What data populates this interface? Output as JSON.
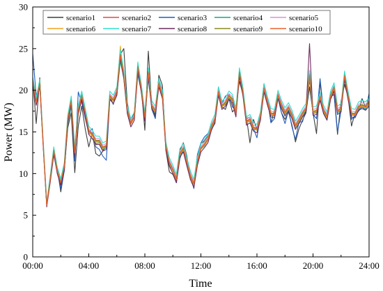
{
  "chart_data": {
    "type": "line",
    "xlabel": "Time",
    "ylabel": "Power (MW)",
    "xticks": [
      "00:00",
      "04:00",
      "08:00",
      "12:00",
      "16:00",
      "20:00",
      "24:00"
    ],
    "xlim": [
      0,
      24
    ],
    "ylim": [
      0,
      30
    ],
    "yticks": [
      0,
      5,
      10,
      15,
      20,
      25,
      30
    ],
    "legend_position": "top",
    "x": [
      0.0,
      0.25,
      0.5,
      0.75,
      1.0,
      1.25,
      1.5,
      1.75,
      2.0,
      2.25,
      2.5,
      2.75,
      3.0,
      3.25,
      3.5,
      3.75,
      4.0,
      4.25,
      4.5,
      4.75,
      5.0,
      5.25,
      5.5,
      5.75,
      6.0,
      6.25,
      6.5,
      6.75,
      7.0,
      7.25,
      7.5,
      7.75,
      8.0,
      8.25,
      8.5,
      8.75,
      9.0,
      9.25,
      9.5,
      9.75,
      10.0,
      10.25,
      10.5,
      10.75,
      11.0,
      11.25,
      11.5,
      11.75,
      12.0,
      12.25,
      12.5,
      12.75,
      13.0,
      13.25,
      13.5,
      13.75,
      14.0,
      14.25,
      14.5,
      14.75,
      15.0,
      15.25,
      15.5,
      15.75,
      16.0,
      16.25,
      16.5,
      16.75,
      17.0,
      17.25,
      17.5,
      17.75,
      18.0,
      18.25,
      18.5,
      18.75,
      19.0,
      19.25,
      19.5,
      19.75,
      20.0,
      20.25,
      20.5,
      20.75,
      21.0,
      21.25,
      21.5,
      21.75,
      22.0,
      22.25,
      22.5,
      22.75,
      23.0,
      23.25,
      23.5,
      23.75,
      24.0
    ],
    "series": [
      {
        "name": "scenario1",
        "color": "#3d3d3d",
        "values": [
          21.4,
          16.0,
          21.5,
          13.4,
          6.3,
          9.3,
          12.8,
          10.6,
          7.8,
          10.4,
          15.5,
          17.3,
          10.1,
          15.7,
          18.1,
          15.3,
          13.2,
          14.9,
          12.4,
          12.1,
          12.7,
          13.3,
          19.3,
          18.3,
          20.2,
          24.3,
          25.0,
          18.5,
          16.2,
          17.4,
          22.5,
          20.2,
          15.2,
          24.7,
          18.0,
          16.8,
          21.8,
          20.6,
          12.8,
          10.2,
          9.9,
          8.9,
          12.8,
          13.7,
          12.1,
          9.3,
          9.0,
          12.1,
          13.6,
          13.9,
          14.5,
          15.4,
          16.0,
          20.2,
          18.0,
          17.7,
          19.0,
          17.4,
          17.9,
          21.1,
          19.5,
          16.8,
          13.7,
          16.5,
          15.3,
          17.2,
          20.7,
          18.9,
          16.1,
          17.6,
          19.2,
          17.3,
          16.5,
          17.4,
          15.8,
          13.8,
          15.4,
          16.4,
          17.3,
          20.4,
          17.3,
          14.8,
          21.0,
          17.4,
          16.6,
          19.2,
          19.5,
          14.7,
          18.7,
          20.7,
          19.2,
          15.7,
          17.3,
          17.5,
          19.0,
          18.0,
          18.8
        ]
      },
      {
        "name": "scenario2",
        "color": "#e8453c",
        "values": [
          21.0,
          18.5,
          20.8,
          13.5,
          6.2,
          9.3,
          12.7,
          10.3,
          9.0,
          10.8,
          16.5,
          18.7,
          12.5,
          17.6,
          19.3,
          17.2,
          15.1,
          14.6,
          13.9,
          13.9,
          13.1,
          13.3,
          19.3,
          18.8,
          19.8,
          24.2,
          21.8,
          17.6,
          16.0,
          16.8,
          22.8,
          20.1,
          16.7,
          22.1,
          18.1,
          17.5,
          20.8,
          19.4,
          13.2,
          11.3,
          10.4,
          9.3,
          12.4,
          13.0,
          11.3,
          9.7,
          8.7,
          11.4,
          13.0,
          13.5,
          14.1,
          15.6,
          16.5,
          19.8,
          18.1,
          18.5,
          19.3,
          18.9,
          17.2,
          22.1,
          19.7,
          16.2,
          16.5,
          15.5,
          15.3,
          16.8,
          20.2,
          18.6,
          17.2,
          17.1,
          19.4,
          18.2,
          17.3,
          17.9,
          17.0,
          15.7,
          16.4,
          17.2,
          17.8,
          21.8,
          17.4,
          17.5,
          19.2,
          17.6,
          16.8,
          19.3,
          20.3,
          17.5,
          17.8,
          21.7,
          19.3,
          17.2,
          17.1,
          18.0,
          18.2,
          18.0,
          18.5
        ]
      },
      {
        "name": "scenario3",
        "color": "#1f5bbf",
        "values": [
          24.4,
          19.3,
          20.9,
          13.4,
          6.5,
          9.1,
          12.2,
          10.3,
          8.2,
          10.3,
          15.9,
          18.1,
          11.5,
          19.8,
          18.5,
          16.6,
          14.9,
          15.4,
          13.2,
          12.9,
          12.1,
          11.6,
          18.9,
          18.9,
          19.5,
          23.9,
          22.1,
          17.9,
          16.4,
          16.7,
          21.9,
          19.8,
          17.2,
          21.4,
          17.7,
          16.6,
          21.3,
          20.1,
          13.3,
          10.9,
          10.5,
          8.9,
          11.8,
          12.9,
          11.9,
          9.9,
          8.2,
          12.3,
          13.7,
          14.4,
          14.8,
          15.9,
          16.3,
          20.4,
          18.4,
          19.3,
          19.5,
          18.0,
          17.6,
          21.8,
          19.7,
          16.6,
          16.8,
          15.4,
          14.3,
          17.0,
          20.8,
          19.1,
          16.1,
          16.6,
          19.1,
          17.3,
          16.0,
          17.6,
          15.6,
          14.1,
          16.2,
          16.2,
          17.8,
          21.3,
          17.1,
          16.6,
          21.4,
          17.5,
          17.2,
          19.5,
          19.8,
          15.0,
          17.6,
          21.9,
          19.7,
          16.5,
          16.9,
          17.5,
          18.0,
          17.6,
          19.6
        ]
      },
      {
        "name": "scenario4",
        "color": "#16a67e",
        "values": [
          20.8,
          18.8,
          20.9,
          13.4,
          6.1,
          9.4,
          12.6,
          10.1,
          8.8,
          10.5,
          16.0,
          18.2,
          12.3,
          17.1,
          19.0,
          17.1,
          14.8,
          14.7,
          13.6,
          13.7,
          12.9,
          13.1,
          19.0,
          18.4,
          19.4,
          23.5,
          21.4,
          17.3,
          16.3,
          17.1,
          22.3,
          19.8,
          16.4,
          21.8,
          17.8,
          17.3,
          20.5,
          19.3,
          13.0,
          11.1,
          10.3,
          9.2,
          12.2,
          12.8,
          11.1,
          9.6,
          8.6,
          11.3,
          12.9,
          13.3,
          14.0,
          15.4,
          16.3,
          19.6,
          18.0,
          18.3,
          19.1,
          18.7,
          17.0,
          21.8,
          19.5,
          16.1,
          16.3,
          15.3,
          15.2,
          16.6,
          20.0,
          18.4,
          17.0,
          16.9,
          19.2,
          18.0,
          17.1,
          17.7,
          16.8,
          15.5,
          16.2,
          17.0,
          17.6,
          21.5,
          17.2,
          17.3,
          19.0,
          17.4,
          16.6,
          19.1,
          20.0,
          17.3,
          17.6,
          21.4,
          19.1,
          17.0,
          17.0,
          17.8,
          18.0,
          17.8,
          18.3
        ]
      },
      {
        "name": "scenario5",
        "color": "#d98fd9",
        "values": [
          21.3,
          18.7,
          21.0,
          13.6,
          6.3,
          9.5,
          12.9,
          10.5,
          9.1,
          11.0,
          16.7,
          19.0,
          12.8,
          17.9,
          19.6,
          17.5,
          15.4,
          14.9,
          14.2,
          14.2,
          13.4,
          13.6,
          19.6,
          19.1,
          20.1,
          24.6,
          22.1,
          17.9,
          16.3,
          17.1,
          23.1,
          20.4,
          17.0,
          22.4,
          18.4,
          17.8,
          21.1,
          19.7,
          13.5,
          11.6,
          10.7,
          9.6,
          12.7,
          13.3,
          11.6,
          10.0,
          9.0,
          11.7,
          13.3,
          13.8,
          14.4,
          15.9,
          16.8,
          20.1,
          18.4,
          18.8,
          19.6,
          19.2,
          17.5,
          22.4,
          20.0,
          16.5,
          16.8,
          15.8,
          15.6,
          17.1,
          20.5,
          18.9,
          17.5,
          17.4,
          19.7,
          18.5,
          17.6,
          18.2,
          17.3,
          16.0,
          16.7,
          17.5,
          18.1,
          22.1,
          17.7,
          17.8,
          19.5,
          17.9,
          17.1,
          19.6,
          20.6,
          17.8,
          18.1,
          22.0,
          19.6,
          17.5,
          17.4,
          18.3,
          18.5,
          18.3,
          18.8
        ]
      },
      {
        "name": "scenario6",
        "color": "#f2a21d",
        "values": [
          21.1,
          18.4,
          20.7,
          13.3,
          6.2,
          9.2,
          12.8,
          10.2,
          9.0,
          10.7,
          16.6,
          18.6,
          12.4,
          17.5,
          19.2,
          17.1,
          15.0,
          14.5,
          13.8,
          13.8,
          13.0,
          13.2,
          19.2,
          18.7,
          19.7,
          25.3,
          21.7,
          17.5,
          15.9,
          16.7,
          22.7,
          20.0,
          16.6,
          22.0,
          18.0,
          17.4,
          20.7,
          19.3,
          13.1,
          11.2,
          10.3,
          9.2,
          12.3,
          12.9,
          11.2,
          9.6,
          8.6,
          11.3,
          12.9,
          13.4,
          14.0,
          15.5,
          16.4,
          19.7,
          18.0,
          18.4,
          19.2,
          18.8,
          17.1,
          22.0,
          19.6,
          16.1,
          16.4,
          15.4,
          15.2,
          16.7,
          20.1,
          18.5,
          17.1,
          17.0,
          19.3,
          18.1,
          17.2,
          17.8,
          16.9,
          15.6,
          16.3,
          17.1,
          17.7,
          21.7,
          17.3,
          17.4,
          19.1,
          17.5,
          16.7,
          19.2,
          20.2,
          17.4,
          17.7,
          21.6,
          19.2,
          17.1,
          17.0,
          17.9,
          18.1,
          17.9,
          18.4
        ]
      },
      {
        "name": "scenario7",
        "color": "#2ee0c8",
        "values": [
          21.6,
          19.1,
          21.3,
          13.9,
          6.6,
          9.8,
          13.2,
          10.8,
          9.4,
          11.3,
          17.0,
          19.3,
          13.1,
          18.2,
          19.9,
          17.8,
          15.7,
          15.2,
          14.5,
          14.5,
          13.7,
          13.9,
          19.9,
          19.4,
          20.4,
          24.9,
          22.4,
          18.2,
          16.6,
          17.4,
          23.4,
          20.7,
          17.3,
          22.7,
          18.7,
          18.1,
          21.4,
          20.0,
          13.8,
          11.9,
          11.0,
          9.9,
          13.0,
          13.6,
          11.9,
          10.3,
          9.3,
          12.0,
          13.6,
          14.1,
          14.7,
          16.2,
          17.1,
          20.4,
          18.7,
          19.1,
          19.9,
          19.5,
          17.8,
          22.7,
          20.3,
          16.8,
          17.1,
          16.1,
          15.9,
          17.4,
          20.8,
          19.2,
          17.8,
          17.7,
          20.0,
          18.8,
          17.9,
          18.5,
          17.6,
          16.3,
          17.0,
          17.8,
          18.4,
          22.4,
          18.0,
          18.1,
          19.8,
          18.2,
          17.4,
          19.9,
          20.9,
          18.1,
          18.4,
          22.3,
          19.9,
          17.8,
          17.7,
          18.6,
          18.8,
          18.6,
          19.1
        ]
      },
      {
        "name": "scenario8",
        "color": "#6b2a5e",
        "values": [
          20.6,
          18.2,
          20.5,
          13.1,
          6.0,
          9.0,
          12.4,
          10.0,
          8.6,
          10.4,
          16.2,
          18.4,
          12.1,
          17.2,
          18.9,
          16.8,
          14.7,
          14.2,
          13.5,
          13.5,
          12.7,
          12.9,
          18.9,
          18.4,
          19.4,
          23.9,
          21.4,
          17.2,
          15.6,
          16.4,
          22.4,
          19.7,
          16.3,
          21.7,
          17.7,
          17.1,
          20.4,
          19.0,
          12.8,
          10.9,
          10.0,
          8.9,
          12.0,
          12.6,
          10.9,
          9.3,
          8.3,
          11.0,
          12.6,
          13.1,
          13.7,
          15.2,
          16.1,
          19.4,
          17.7,
          18.1,
          18.9,
          18.5,
          16.8,
          21.7,
          19.3,
          15.8,
          16.1,
          15.1,
          14.9,
          16.4,
          19.8,
          18.2,
          16.8,
          16.7,
          19.0,
          17.8,
          16.9,
          17.5,
          16.6,
          15.3,
          16.0,
          16.8,
          17.4,
          25.6,
          17.0,
          17.1,
          18.8,
          17.2,
          16.4,
          18.9,
          19.9,
          17.1,
          17.4,
          21.3,
          18.9,
          16.8,
          16.7,
          17.6,
          17.8,
          17.6,
          18.1
        ]
      },
      {
        "name": "scenario9",
        "color": "#8a8a1c",
        "values": [
          21.2,
          18.6,
          20.9,
          13.5,
          6.3,
          9.4,
          12.8,
          10.4,
          9.0,
          10.9,
          16.6,
          18.8,
          12.6,
          17.7,
          19.4,
          17.3,
          15.2,
          14.8,
          14.0,
          14.0,
          13.2,
          13.4,
          19.4,
          18.9,
          19.9,
          24.3,
          21.9,
          17.7,
          16.1,
          16.9,
          22.9,
          20.2,
          16.8,
          22.2,
          18.2,
          17.6,
          20.9,
          19.5,
          13.3,
          11.4,
          10.5,
          9.4,
          12.5,
          13.1,
          11.4,
          9.8,
          8.8,
          11.5,
          13.1,
          13.6,
          14.2,
          15.7,
          16.6,
          19.9,
          18.2,
          18.6,
          19.4,
          19.0,
          17.3,
          22.2,
          19.8,
          16.3,
          16.6,
          15.6,
          15.4,
          16.9,
          20.3,
          18.7,
          17.3,
          17.2,
          19.5,
          18.3,
          17.4,
          18.0,
          17.1,
          15.8,
          16.5,
          17.3,
          17.9,
          21.9,
          17.5,
          17.6,
          19.3,
          17.7,
          16.9,
          19.4,
          20.4,
          17.6,
          17.9,
          21.8,
          19.4,
          17.3,
          17.2,
          18.1,
          18.3,
          18.1,
          18.6
        ]
      },
      {
        "name": "scenario10",
        "color": "#e8602b",
        "values": [
          21.1,
          18.5,
          20.8,
          13.4,
          6.2,
          9.3,
          12.7,
          10.3,
          8.9,
          10.8,
          16.5,
          18.7,
          12.5,
          17.6,
          19.3,
          17.2,
          15.1,
          14.7,
          13.9,
          13.9,
          13.1,
          13.3,
          19.3,
          18.8,
          19.8,
          24.2,
          21.8,
          17.6,
          16.0,
          16.8,
          22.8,
          20.1,
          16.7,
          22.1,
          18.1,
          17.5,
          20.8,
          19.4,
          13.2,
          11.3,
          10.4,
          9.3,
          12.4,
          13.0,
          11.3,
          9.7,
          8.7,
          11.4,
          13.0,
          13.5,
          14.1,
          15.6,
          16.5,
          19.8,
          18.1,
          18.5,
          19.3,
          18.9,
          17.2,
          22.1,
          19.7,
          16.2,
          16.5,
          15.5,
          15.3,
          16.8,
          20.2,
          18.6,
          17.2,
          17.1,
          19.4,
          18.2,
          17.3,
          17.9,
          17.0,
          15.7,
          16.4,
          17.2,
          17.8,
          21.8,
          17.4,
          17.5,
          19.2,
          17.6,
          16.8,
          19.3,
          20.3,
          17.5,
          17.8,
          21.7,
          19.3,
          17.2,
          17.1,
          18.0,
          18.2,
          18.0,
          18.5
        ]
      }
    ]
  }
}
